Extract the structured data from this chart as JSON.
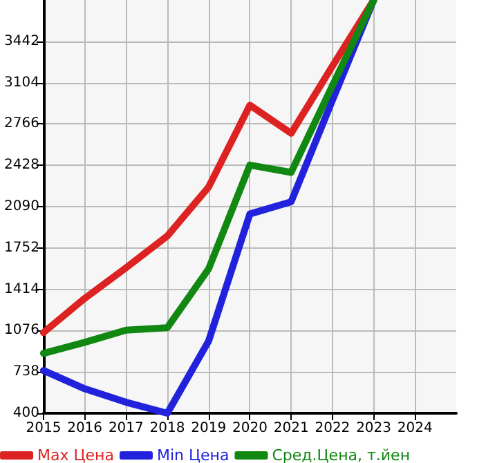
{
  "chart_data": {
    "type": "line",
    "x": [
      2015,
      2016,
      2017,
      2018,
      2019,
      2020,
      2021,
      2022,
      2023
    ],
    "series": [
      {
        "name": "Max Цена",
        "color": "#dd2222",
        "values": [
          1060,
          1340,
          1590,
          1850,
          2250,
          2920,
          2690,
          3240,
          3780
        ]
      },
      {
        "name": "Min Цена",
        "color": "#2222dd",
        "values": [
          750,
          600,
          490,
          400,
          990,
          2030,
          2130,
          2960,
          3780
        ]
      },
      {
        "name": "Сред.Цена, т.йен",
        "color": "#118811",
        "values": [
          890,
          980,
          1080,
          1100,
          1580,
          2430,
          2370,
          3080,
          3780
        ]
      }
    ],
    "xlim": [
      2015,
      2025
    ],
    "xticks": [
      2015,
      2016,
      2017,
      2018,
      2019,
      2020,
      2021,
      2022,
      2023,
      2024
    ],
    "ylim": [
      400,
      3780
    ],
    "yticks": [
      400,
      738,
      1076,
      1414,
      1752,
      2090,
      2428,
      2766,
      3104,
      3442
    ],
    "grid": true,
    "legend": "bottom",
    "marker": "none",
    "line_style": "solid"
  }
}
